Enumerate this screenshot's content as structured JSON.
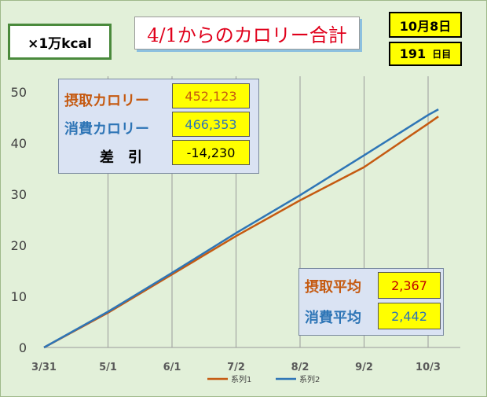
{
  "header": {
    "unit_label": "×1万kcal",
    "title": "4/1からのカロリー合計",
    "date_label": "10月8日",
    "days_count": "191",
    "days_suffix": "日目"
  },
  "summary": {
    "intake_label": "摂取カロリー",
    "intake_value": "452,123",
    "burn_label": "消費カロリー",
    "burn_value": "466,353",
    "diff_label": "差　引",
    "diff_value": "-14,230"
  },
  "averages": {
    "intake_label": "摂取平均",
    "intake_value": "2,367",
    "burn_label": "消費平均",
    "burn_value": "2,442"
  },
  "colors": {
    "series1": "#c55a11",
    "series2": "#2e75b6",
    "frame_bg": "#e2f0d9",
    "panel_bg": "#dae3f3",
    "highlight": "#ffff00",
    "title_text": "#e0001b",
    "avg_intake_text": "#c00000",
    "avg_burn_text": "#2e75b6"
  },
  "chart_data": {
    "type": "line",
    "x_tick_labels": [
      "3/31",
      "5/1",
      "6/1",
      "7/2",
      "8/2",
      "9/2",
      "10/3"
    ],
    "y_ticks": [
      0,
      10,
      20,
      30,
      40,
      50
    ],
    "ylim": [
      0,
      50
    ],
    "grid": "vertical",
    "legend_position": "bottom",
    "series": [
      {
        "name": "系列1",
        "points": [
          [
            "3/31",
            0
          ],
          [
            "5/1",
            6.8
          ],
          [
            "6/1",
            14.3
          ],
          [
            "7/2",
            21.8
          ],
          [
            "8/2",
            28.8
          ],
          [
            "9/2",
            35.3
          ],
          [
            "10/3",
            43.8
          ],
          [
            "10/8",
            45.2
          ]
        ]
      },
      {
        "name": "系列2",
        "points": [
          [
            "3/31",
            0
          ],
          [
            "5/1",
            7.0
          ],
          [
            "6/1",
            14.6
          ],
          [
            "7/2",
            22.4
          ],
          [
            "8/2",
            29.8
          ],
          [
            "9/2",
            37.6
          ],
          [
            "10/3",
            45.5
          ],
          [
            "10/8",
            46.6
          ]
        ]
      }
    ]
  }
}
